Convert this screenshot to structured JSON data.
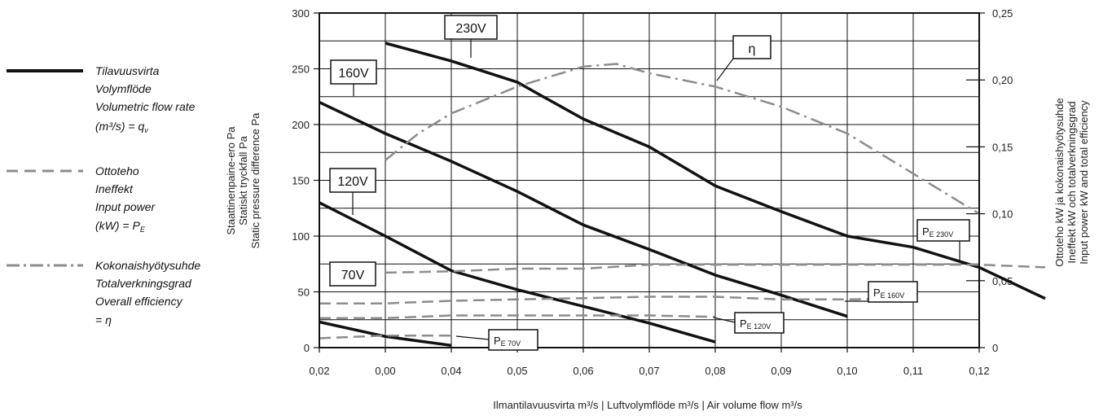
{
  "legend": {
    "flow": {
      "lines": [
        "Tilavuusvirta",
        "Volymflöde",
        "Volumetric flow rate",
        "(m³/s) = q"
      ],
      "sub": "v"
    },
    "power": {
      "lines": [
        "Ottoteho",
        "Ineffekt",
        "Input power",
        "(kW) = P"
      ],
      "sub": "E"
    },
    "efficiency": {
      "lines": [
        "Kokonaishyötysuhde",
        "Totalverkningsgrad",
        "Overall efficiency",
        "= η"
      ]
    }
  },
  "axes": {
    "xlabel": "Ilmantilavuusvirta m³/s  | Luftvolymflöde m³/s | Air volume flow m³/s",
    "ylabel_left": [
      "Staattinenpaine-ero Pa",
      "Statiskt tryckfall Pa",
      "Static pressure difference Pa"
    ],
    "ylabel_right": [
      "Ottoteho kW ja kokonaishyötysuhde",
      "Ineffekt kW och totalverkningsgrad",
      "Input power kW and total efficiency"
    ],
    "x_ticks": [
      "0,02",
      "0,00",
      "0,04",
      "0,05",
      "0,06",
      "0,07",
      "0,08",
      "0,09",
      "0,10",
      "0,11",
      "0,12"
    ],
    "y_left_ticks": [
      "0",
      "50",
      "100",
      "150",
      "200",
      "250",
      "300"
    ],
    "y_right_ticks": [
      "0",
      "0,05",
      "0,10",
      "0,15",
      "0,20",
      "0,25"
    ]
  },
  "callouts": {
    "v230": "230V",
    "v160": "160V",
    "v120": "120V",
    "v70": "70V",
    "eta": "η",
    "pe230": {
      "main": "P",
      "sub": "E 230V"
    },
    "pe160": {
      "main": "P",
      "sub": "E 160V"
    },
    "pe120": {
      "main": "P",
      "sub": "E 120V"
    },
    "pe70": {
      "main": "P",
      "sub": "E 70V"
    }
  },
  "chart_data": {
    "type": "line",
    "x_categories": [
      "0,02",
      "0,00",
      "0,04",
      "0,05",
      "0,06",
      "0,07",
      "0,08",
      "0,09",
      "0,10",
      "0,11",
      "0,12"
    ],
    "ylim_left": [
      0,
      300
    ],
    "ylim_right": [
      0,
      0.25
    ],
    "grid": true,
    "colors": {
      "pressure": "#111111",
      "power": "#8c8c8c",
      "efficiency": "#8c8c8c"
    },
    "series": [
      {
        "name": "230V",
        "kind": "pressure",
        "axis": "left",
        "points": [
          [
            1,
            273
          ],
          [
            2,
            257
          ],
          [
            3,
            238
          ],
          [
            3.3,
            228
          ],
          [
            4,
            205
          ],
          [
            5,
            180
          ],
          [
            6,
            145
          ],
          [
            7,
            122
          ],
          [
            8,
            100
          ],
          [
            9,
            90
          ],
          [
            10,
            72
          ],
          [
            11,
            44
          ]
        ]
      },
      {
        "name": "160V",
        "kind": "pressure",
        "axis": "left",
        "points": [
          [
            0,
            220
          ],
          [
            1,
            192
          ],
          [
            2,
            167
          ],
          [
            3,
            140
          ],
          [
            4,
            110
          ],
          [
            5,
            88
          ],
          [
            6,
            65
          ],
          [
            7,
            47
          ],
          [
            8,
            28
          ]
        ]
      },
      {
        "name": "120V",
        "kind": "pressure",
        "axis": "left",
        "points": [
          [
            0,
            130
          ],
          [
            1,
            100
          ],
          [
            2,
            69
          ],
          [
            3,
            52
          ],
          [
            4,
            37
          ],
          [
            5,
            22
          ],
          [
            6,
            5
          ]
        ]
      },
      {
        "name": "70V",
        "kind": "pressure",
        "axis": "left",
        "points": [
          [
            0,
            23
          ],
          [
            1,
            10
          ],
          [
            2,
            2
          ]
        ]
      },
      {
        "name": "η",
        "kind": "efficiency",
        "axis": "right",
        "points": [
          [
            1,
            0.14
          ],
          [
            1.5,
            0.16
          ],
          [
            2,
            0.175
          ],
          [
            3,
            0.195
          ],
          [
            4,
            0.21
          ],
          [
            4.5,
            0.212
          ],
          [
            5,
            0.205
          ],
          [
            6,
            0.195
          ],
          [
            7,
            0.18
          ],
          [
            8,
            0.16
          ],
          [
            9,
            0.13
          ],
          [
            10,
            0.1
          ]
        ]
      },
      {
        "name": "P E 230V",
        "kind": "power",
        "axis": "right",
        "points": [
          [
            1,
            0.056
          ],
          [
            2,
            0.057
          ],
          [
            3,
            0.059
          ],
          [
            4,
            0.059
          ],
          [
            5,
            0.062
          ],
          [
            6,
            0.062
          ],
          [
            7,
            0.062
          ],
          [
            8,
            0.062
          ],
          [
            9,
            0.062
          ],
          [
            10,
            0.062
          ],
          [
            11,
            0.06
          ]
        ]
      },
      {
        "name": "P E 160V",
        "kind": "power",
        "axis": "right",
        "points": [
          [
            0,
            0.033
          ],
          [
            1,
            0.033
          ],
          [
            2,
            0.035
          ],
          [
            3,
            0.036
          ],
          [
            4,
            0.037
          ],
          [
            5,
            0.038
          ],
          [
            6,
            0.038
          ],
          [
            7,
            0.036
          ],
          [
            8,
            0.036
          ],
          [
            9,
            0.037
          ]
        ]
      },
      {
        "name": "P E 120V",
        "kind": "power",
        "axis": "right",
        "points": [
          [
            0,
            0.022
          ],
          [
            1,
            0.022
          ],
          [
            2,
            0.024
          ],
          [
            3,
            0.024
          ],
          [
            4,
            0.024
          ],
          [
            5,
            0.024
          ],
          [
            6,
            0.023
          ]
        ]
      },
      {
        "name": "P E 70V",
        "kind": "power",
        "axis": "right",
        "points": [
          [
            0,
            0.007
          ],
          [
            1,
            0.009
          ],
          [
            2,
            0.009
          ]
        ]
      }
    ]
  }
}
